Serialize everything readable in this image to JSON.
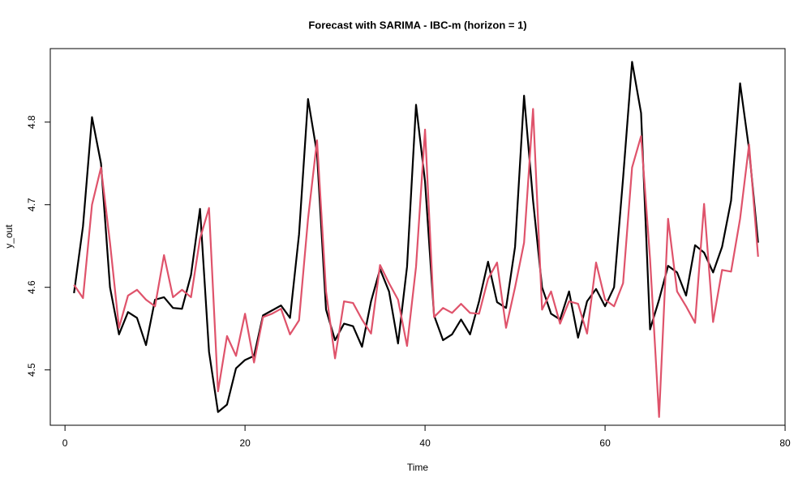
{
  "chart_data": {
    "type": "line",
    "title": "Forecast with SARIMA - IBC-m (horizon = 1)",
    "x_label": "Time",
    "y_label": "y_out",
    "x": [
      1,
      2,
      3,
      4,
      5,
      6,
      7,
      8,
      9,
      10,
      11,
      12,
      13,
      14,
      15,
      16,
      17,
      18,
      19,
      20,
      21,
      22,
      23,
      24,
      25,
      26,
      27,
      28,
      29,
      30,
      31,
      32,
      33,
      34,
      35,
      36,
      37,
      38,
      39,
      40,
      41,
      42,
      43,
      44,
      45,
      46,
      47,
      48,
      49,
      50,
      51,
      52,
      53,
      54,
      55,
      56,
      57,
      58,
      59,
      60,
      61,
      62,
      63,
      64,
      65,
      66,
      67,
      68,
      69,
      70,
      71,
      72,
      73,
      74,
      75,
      76,
      77
    ],
    "series": [
      {
        "color": "#000000",
        "values": [
          4.593,
          4.674,
          4.806,
          4.75,
          4.6,
          4.543,
          4.57,
          4.563,
          4.53,
          4.585,
          4.588,
          4.575,
          4.574,
          4.615,
          4.695,
          4.522,
          4.449,
          4.458,
          4.502,
          4.512,
          4.517,
          4.566,
          4.572,
          4.578,
          4.563,
          4.664,
          4.828,
          4.762,
          4.573,
          4.536,
          4.556,
          4.553,
          4.528,
          4.583,
          4.622,
          4.595,
          4.532,
          4.625,
          4.821,
          4.728,
          4.566,
          4.536,
          4.543,
          4.561,
          4.543,
          4.583,
          4.631,
          4.582,
          4.575,
          4.649,
          4.832,
          4.705,
          4.6,
          4.568,
          4.561,
          4.595,
          4.539,
          4.583,
          4.598,
          4.577,
          4.6,
          4.732,
          4.873,
          4.811,
          4.549,
          4.585,
          4.626,
          4.618,
          4.59,
          4.651,
          4.642,
          4.618,
          4.649,
          4.705,
          4.847,
          4.767,
          4.654
        ]
      },
      {
        "color": "#DF536B",
        "values": [
          4.603,
          4.587,
          4.7,
          4.745,
          4.654,
          4.551,
          4.59,
          4.597,
          4.585,
          4.577,
          4.639,
          4.588,
          4.597,
          4.588,
          4.659,
          4.696,
          4.474,
          4.541,
          4.517,
          4.568,
          4.509,
          4.564,
          4.568,
          4.574,
          4.543,
          4.56,
          4.683,
          4.778,
          4.595,
          4.514,
          4.583,
          4.581,
          4.561,
          4.544,
          4.627,
          4.605,
          4.585,
          4.529,
          4.625,
          4.791,
          4.564,
          4.575,
          4.569,
          4.58,
          4.569,
          4.568,
          4.61,
          4.63,
          4.551,
          4.6,
          4.654,
          4.816,
          4.573,
          4.595,
          4.556,
          4.583,
          4.58,
          4.544,
          4.63,
          4.585,
          4.577,
          4.605,
          4.745,
          4.783,
          4.634,
          4.443,
          4.683,
          4.595,
          4.577,
          4.557,
          4.701,
          4.558,
          4.621,
          4.619,
          4.683,
          4.773,
          4.637
        ]
      }
    ],
    "xlim": [
      -2.04,
      80.04
    ],
    "xticks": [
      0,
      20,
      40,
      60,
      80
    ],
    "ylim": [
      4.433,
      4.889
    ],
    "yticks": [
      4.5,
      4.6,
      4.7,
      4.8
    ]
  }
}
